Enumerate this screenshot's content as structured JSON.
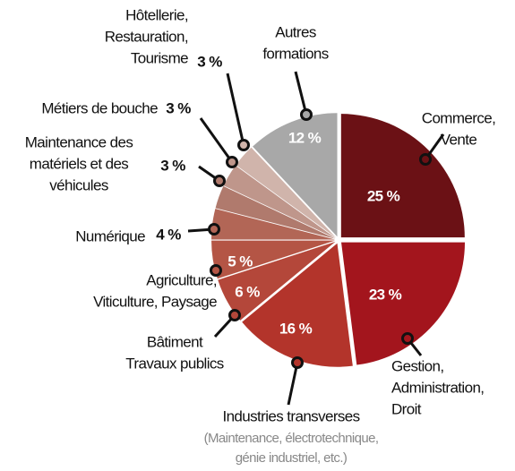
{
  "chart_data": {
    "type": "pie",
    "categories": [
      [
        "Commerce,",
        "Vente"
      ],
      [
        "Gestion,",
        "Administration,",
        "Droit"
      ],
      [
        "Industries transverses"
      ],
      [
        "Bâtiment",
        "Travaux publics"
      ],
      [
        "Agriculture,",
        "Viticulture, Paysage"
      ],
      [
        "Numérique"
      ],
      [
        "Maintenance des",
        "matériels et des",
        "véhicules"
      ],
      [
        "Métiers de bouche"
      ],
      [
        "Hôtellerie,",
        "Restauration,",
        "Tourisme"
      ],
      [
        "Autres",
        "formations"
      ]
    ],
    "values": [
      25,
      23,
      16,
      6,
      5,
      4,
      3,
      3,
      3,
      12
    ],
    "value_labels": [
      "25 %",
      "23 %",
      "16 %",
      "6 %",
      "5 %",
      "4 %",
      "3 %",
      "3 %",
      "3 %",
      "12 %"
    ],
    "colors": [
      "#6b1115",
      "#a3151d",
      "#b3342b",
      "#b4473a",
      "#b45545",
      "#b26656",
      "#b07a6d",
      "#bf968b",
      "#d0b4ab",
      "#a8a8a8"
    ],
    "annotations": [
      "(Maintenance, électrotechnique,",
      "génie industriel, etc.)"
    ]
  }
}
